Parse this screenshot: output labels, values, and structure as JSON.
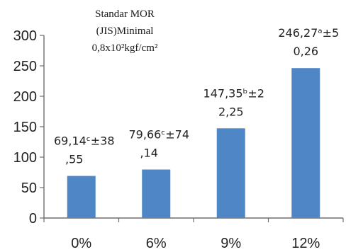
{
  "chart_data": {
    "type": "bar",
    "categories": [
      "0%",
      "6%",
      "9%",
      "12%"
    ],
    "values": [
      69.14,
      79.66,
      147.35,
      246.27
    ],
    "ylim": [
      0,
      300
    ],
    "yticks": [
      "0",
      "50",
      "100",
      "150",
      "200",
      "250",
      "300"
    ],
    "grid": false,
    "bar_color": "#4f87c6",
    "data_labels": [
      {
        "line1": "69,14ᶜ±38",
        "line2": ",55"
      },
      {
        "line1": "79,66ᶜ±74",
        "line2": ",14"
      },
      {
        "line1": "147,35ᵇ±2",
        "line2": "2,25"
      },
      {
        "line1": "246,27ᵃ±5",
        "line2": "0,26"
      }
    ],
    "annotation": {
      "line1": "Standar MOR",
      "line2": "(JIS)Minimal",
      "line3": "0,8x10²kgf/cm²"
    }
  }
}
